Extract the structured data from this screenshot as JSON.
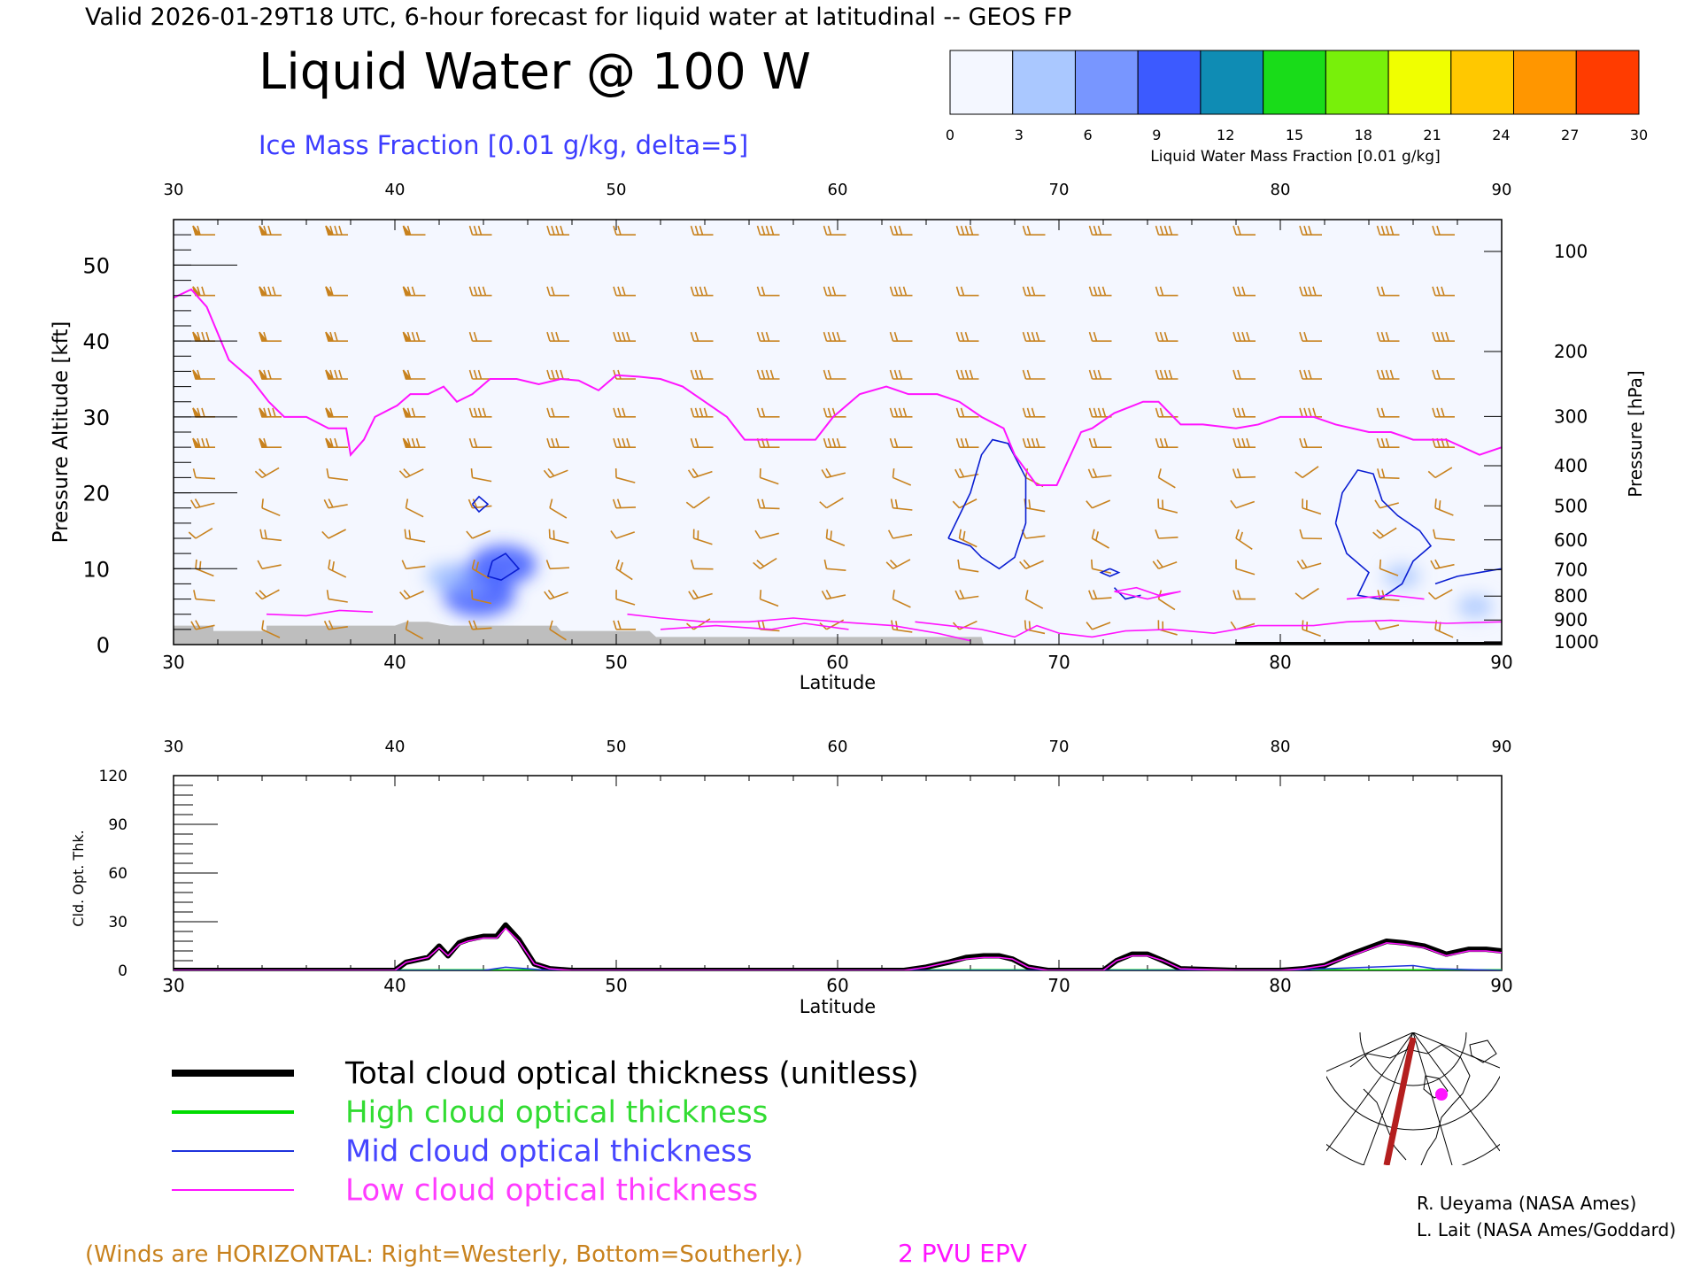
{
  "header": {
    "valid_line": "Valid 2026-01-29T18 UTC, 6-hour forecast for liquid water at latitudinal -- GEOS FP",
    "title": "Liquid Water @ 100 W",
    "subtitle": "Ice Mass Fraction [0.01 g/kg, delta=5]"
  },
  "colorbar": {
    "label": "Liquid Water Mass Fraction [0.01 g/kg]",
    "ticks": [
      "0",
      "3",
      "6",
      "9",
      "12",
      "15",
      "18",
      "21",
      "24",
      "27",
      "30"
    ],
    "colors": [
      "#f4f7ff",
      "#aac8ff",
      "#7896ff",
      "#3c5aff",
      "#0f8cb4",
      "#19dc19",
      "#78f00a",
      "#f0ff00",
      "#ffc800",
      "#ff9600",
      "#ff3c00"
    ]
  },
  "colors": {
    "wind": "#c8821e",
    "epv": "#ff14ff",
    "ice_contour": "#0a1ed2",
    "terrain": "#bebebe",
    "total": "#000000",
    "high": "#00dc00",
    "mid": "#1e32dc",
    "low": "#ff14ff",
    "credits": "#000000",
    "map_track": "#b41e1e",
    "map_marker": "#ff14ff"
  },
  "chart_data": [
    {
      "type": "heatmap",
      "name_hint": "latitude-pressure cross section",
      "x_axis": {
        "label": "Latitude",
        "range": [
          30,
          90
        ],
        "ticks": [
          "30",
          "40",
          "50",
          "60",
          "70",
          "80",
          "90"
        ]
      },
      "y_axis_left": {
        "label": "Pressure Altitude [kft]",
        "range": [
          0,
          56
        ],
        "ticks": [
          "0",
          "10",
          "20",
          "30",
          "40",
          "50"
        ]
      },
      "y_axis_right": {
        "label": "Pressure [hPa]",
        "ticks": [
          "100",
          "200",
          "300",
          "400",
          "500",
          "600",
          "700",
          "800",
          "900",
          "1000"
        ]
      },
      "liquid_water_blobs": [
        {
          "lat": 43.8,
          "kft": 6.5,
          "value": 9
        },
        {
          "lat": 43.0,
          "kft": 8.5,
          "value": 6
        },
        {
          "lat": 44.9,
          "kft": 10.5,
          "value": 8
        },
        {
          "lat": 42.2,
          "kft": 9.0,
          "value": 3
        },
        {
          "lat": 85.5,
          "kft": 9.0,
          "value": 3
        },
        {
          "lat": 88.8,
          "kft": 5.0,
          "value": 3
        }
      ],
      "epv_2pvu_line": [
        [
          30,
          45.7
        ],
        [
          30.8,
          46.8
        ],
        [
          31.5,
          44.5
        ],
        [
          32.5,
          37.5
        ],
        [
          33.5,
          35.0
        ],
        [
          34.3,
          32.0
        ],
        [
          35.0,
          30.0
        ],
        [
          36.0,
          30.0
        ],
        [
          37.0,
          28.5
        ],
        [
          37.8,
          28.5
        ],
        [
          38.0,
          25.0
        ],
        [
          38.6,
          27.0
        ],
        [
          39.1,
          30.0
        ],
        [
          40.1,
          31.5
        ],
        [
          40.7,
          33.0
        ],
        [
          41.5,
          33.0
        ],
        [
          42.2,
          34.0
        ],
        [
          42.8,
          32.0
        ],
        [
          43.5,
          33.0
        ],
        [
          44.3,
          35.0
        ],
        [
          45.5,
          35.0
        ],
        [
          46.5,
          34.3
        ],
        [
          47.5,
          35.0
        ],
        [
          48.3,
          34.8
        ],
        [
          49.2,
          33.5
        ],
        [
          50.0,
          35.5
        ],
        [
          51.0,
          35.3
        ],
        [
          52.0,
          35.0
        ],
        [
          53.0,
          34.0
        ],
        [
          54.0,
          32.0
        ],
        [
          55.0,
          30.0
        ],
        [
          55.8,
          27.0
        ],
        [
          56.5,
          27.0
        ],
        [
          57.5,
          27.0
        ],
        [
          59.0,
          27.0
        ],
        [
          59.8,
          30.0
        ],
        [
          61.0,
          33.0
        ],
        [
          62.2,
          34.0
        ],
        [
          63.2,
          33.0
        ],
        [
          64.5,
          33.0
        ],
        [
          65.5,
          32.0
        ],
        [
          66.5,
          30.0
        ],
        [
          67.5,
          28.5
        ],
        [
          68.0,
          25.0
        ],
        [
          69.0,
          21.0
        ],
        [
          69.9,
          21.0
        ],
        [
          71.0,
          28.0
        ],
        [
          71.5,
          28.5
        ],
        [
          72.5,
          30.5
        ],
        [
          73.8,
          32.0
        ],
        [
          74.5,
          32.0
        ],
        [
          75.5,
          29.0
        ],
        [
          76.5,
          29.0
        ],
        [
          78.0,
          28.5
        ],
        [
          79.0,
          29.0
        ],
        [
          80.0,
          30.0
        ],
        [
          81.5,
          30.0
        ],
        [
          82.5,
          29.0
        ],
        [
          84.0,
          28.0
        ],
        [
          85.0,
          28.0
        ],
        [
          86.0,
          27.0
        ],
        [
          87.5,
          27.0
        ],
        [
          89.0,
          25.0
        ],
        [
          90.0,
          26.0
        ]
      ],
      "epv_low_segments": [
        [
          [
            34.2,
            4.0
          ],
          [
            36.0,
            3.8
          ],
          [
            37.5,
            4.5
          ],
          [
            39.0,
            4.3
          ]
        ],
        [
          [
            50.5,
            4.0
          ],
          [
            52.0,
            3.5
          ],
          [
            54.0,
            3.0
          ],
          [
            56.0,
            3.0
          ],
          [
            58.0,
            3.5
          ],
          [
            60.0,
            3.0
          ],
          [
            62.5,
            2.5
          ],
          [
            64.5,
            1.5
          ],
          [
            66.0,
            0.5
          ]
        ],
        [
          [
            52.0,
            2.0
          ],
          [
            54.5,
            2.5
          ],
          [
            57.0,
            2.0
          ],
          [
            58.5,
            2.8
          ],
          [
            60.5,
            2.0
          ]
        ],
        [
          [
            63.5,
            3.0
          ],
          [
            65.0,
            2.5
          ],
          [
            66.5,
            2.0
          ],
          [
            68.0,
            1.0
          ],
          [
            69.0,
            2.5
          ],
          [
            70.0,
            1.5
          ],
          [
            71.5,
            1.0
          ],
          [
            73.0,
            1.8
          ],
          [
            75.0,
            2.0
          ],
          [
            77.0,
            1.5
          ],
          [
            79.0,
            2.5
          ],
          [
            81.5,
            2.5
          ],
          [
            83.0,
            3.0
          ],
          [
            85.0,
            3.2
          ],
          [
            87.5,
            2.8
          ],
          [
            90.0,
            3.0
          ]
        ],
        [
          [
            72.5,
            7.0
          ],
          [
            73.5,
            7.5
          ],
          [
            74.5,
            6.5
          ],
          [
            75.5,
            7.0
          ],
          [
            74.0,
            6.0
          ],
          [
            72.5,
            7.0
          ]
        ],
        [
          [
            83.0,
            6.0
          ],
          [
            85.0,
            6.5
          ],
          [
            86.5,
            6.0
          ]
        ]
      ],
      "ice_contours": [
        [
          [
            65.0,
            14.0
          ],
          [
            65.5,
            17.0
          ],
          [
            66.0,
            20.0
          ],
          [
            66.5,
            25.0
          ],
          [
            67.0,
            27.0
          ],
          [
            67.7,
            26.5
          ],
          [
            68.5,
            22.0
          ],
          [
            68.5,
            16.0
          ],
          [
            68.0,
            11.5
          ],
          [
            67.3,
            10.0
          ],
          [
            66.5,
            11.5
          ],
          [
            66.0,
            13.0
          ],
          [
            65.0,
            14.0
          ]
        ],
        [
          [
            82.5,
            16.0
          ],
          [
            82.8,
            20.0
          ],
          [
            83.5,
            23.0
          ],
          [
            84.2,
            22.5
          ],
          [
            84.6,
            19.0
          ],
          [
            85.3,
            17.0
          ],
          [
            86.3,
            15.0
          ],
          [
            86.8,
            13.0
          ],
          [
            86.0,
            11.0
          ],
          [
            85.5,
            8.0
          ],
          [
            84.5,
            6.0
          ],
          [
            83.5,
            6.5
          ],
          [
            84.0,
            9.5
          ],
          [
            83.0,
            12.0
          ],
          [
            82.5,
            16.0
          ]
        ],
        [
          [
            87.0,
            8.0
          ],
          [
            88.0,
            9.0
          ],
          [
            89.0,
            9.5
          ],
          [
            90.0,
            10.0
          ]
        ],
        [
          [
            44.4,
            11.0
          ],
          [
            45.0,
            12.0
          ],
          [
            45.6,
            10.0
          ],
          [
            44.8,
            8.5
          ],
          [
            44.2,
            9.0
          ],
          [
            44.4,
            11.0
          ]
        ],
        [
          [
            43.5,
            18.5
          ],
          [
            43.8,
            19.5
          ],
          [
            44.2,
            18.5
          ],
          [
            43.8,
            17.5
          ],
          [
            43.5,
            18.5
          ]
        ],
        [
          [
            72.3,
            10.0
          ],
          [
            72.7,
            9.5
          ],
          [
            72.3,
            9.0
          ],
          [
            71.9,
            9.5
          ],
          [
            72.3,
            10.0
          ]
        ],
        [
          [
            72.5,
            7.5
          ],
          [
            73.0,
            6.0
          ],
          [
            73.7,
            6.5
          ]
        ]
      ],
      "terrain": [
        [
          30,
          2.5
        ],
        [
          31.8,
          2.5
        ],
        [
          31.8,
          1.8
        ],
        [
          34.2,
          1.8
        ],
        [
          34.2,
          2.5
        ],
        [
          40.0,
          2.5
        ],
        [
          40.5,
          3.0
        ],
        [
          41.5,
          3.0
        ],
        [
          42.5,
          2.5
        ],
        [
          47.3,
          2.5
        ],
        [
          47.5,
          1.8
        ],
        [
          51.5,
          1.8
        ],
        [
          51.8,
          1.0
        ],
        [
          66.5,
          1.0
        ],
        [
          66.6,
          0
        ],
        [
          30,
          0
        ]
      ],
      "wind_barbs": {
        "lats": [
          31.0,
          34.0,
          37.0,
          40.5,
          43.5,
          47.0,
          50.0,
          53.5,
          56.5,
          59.5,
          62.5,
          65.5,
          68.5,
          71.5,
          74.5,
          78.0,
          81.0,
          84.5,
          87.0
        ],
        "levels_kft": [
          54,
          46,
          40,
          35,
          30,
          26,
          22,
          18,
          14,
          10,
          6,
          2
        ]
      }
    },
    {
      "type": "line",
      "name_hint": "cloud optical thickness",
      "x_axis": {
        "label": "Latitude",
        "range": [
          30,
          90
        ],
        "ticks": [
          "30",
          "40",
          "50",
          "60",
          "70",
          "80",
          "90"
        ]
      },
      "y_axis": {
        "label": "Cld. Opt. Thk.",
        "range": [
          0,
          120
        ],
        "ticks": [
          "0",
          "30",
          "60",
          "90",
          "120"
        ]
      },
      "series": [
        {
          "name": "Total cloud optical thickness (unitless)",
          "key": "total",
          "x": [
            30,
            38,
            40,
            40.5,
            41.5,
            42.0,
            42.4,
            42.9,
            43.3,
            44.0,
            44.6,
            45.0,
            45.6,
            46.3,
            47.0,
            48,
            50,
            55,
            60,
            63,
            64,
            65,
            65.8,
            66.6,
            67.3,
            67.9,
            68.6,
            69.5,
            72,
            72.6,
            73.3,
            74.0,
            74.7,
            75.5,
            78,
            80,
            81,
            82,
            83,
            84,
            84.8,
            85.6,
            86.5,
            87.5,
            88.5,
            89.3,
            90
          ],
          "y": [
            0,
            0,
            0,
            5,
            8,
            15,
            9,
            17,
            19,
            21,
            21,
            28,
            19,
            4,
            1,
            0,
            0,
            0,
            0,
            0,
            2,
            5,
            8,
            9,
            9,
            7,
            2,
            0,
            0,
            6,
            10,
            10,
            6,
            1,
            0,
            0,
            1,
            3,
            9,
            14,
            18,
            17,
            15,
            10,
            13,
            13,
            12
          ]
        },
        {
          "name": "High cloud optical thickness",
          "key": "high",
          "x": [
            30,
            90
          ],
          "y": [
            0,
            0
          ]
        },
        {
          "name": "Mid cloud optical thickness",
          "key": "mid",
          "x": [
            30,
            44,
            45,
            46,
            47,
            60,
            80,
            84,
            86,
            87,
            90
          ],
          "y": [
            0,
            0,
            2,
            1,
            0,
            0,
            0,
            2,
            3,
            1,
            0
          ]
        },
        {
          "name": "Low cloud optical thickness",
          "key": "low",
          "x": [
            30,
            38,
            40,
            40.5,
            41.5,
            42.0,
            42.4,
            42.9,
            43.3,
            44.0,
            44.6,
            45.0,
            45.6,
            46.3,
            47.0,
            48,
            50,
            55,
            60,
            63,
            64,
            65,
            65.8,
            66.6,
            67.3,
            67.9,
            68.6,
            69.5,
            72,
            72.6,
            73.3,
            74.0,
            74.7,
            75.5,
            78,
            80,
            81,
            82,
            83,
            84,
            84.8,
            85.6,
            86.5,
            87.5,
            88.5,
            89.3,
            90
          ],
          "y": [
            0,
            0,
            0,
            5,
            8,
            14,
            9,
            16,
            18,
            20,
            20,
            26,
            18,
            4,
            1,
            0,
            0,
            0,
            0,
            0,
            2,
            5,
            7,
            8,
            8,
            7,
            2,
            0,
            0,
            6,
            9,
            9,
            6,
            1,
            0,
            0,
            1,
            3,
            8,
            13,
            17,
            16,
            14,
            9,
            12,
            12,
            11
          ]
        }
      ]
    }
  ],
  "legend": {
    "items": [
      {
        "label": "Total cloud optical thickness (unitless)",
        "key": "total"
      },
      {
        "label": "High cloud optical thickness",
        "key": "high"
      },
      {
        "label": "Mid cloud optical thickness",
        "key": "mid"
      },
      {
        "label": "Low cloud optical thickness",
        "key": "low"
      }
    ]
  },
  "footer": {
    "winds_note": "(Winds are HORIZONTAL: Right=Westerly, Bottom=Southerly.)",
    "epv_label": "2 PVU EPV",
    "credit_1": "R. Ueyama (NASA Ames)",
    "credit_2": "L. Lait (NASA Ames/Goddard)"
  },
  "inset_map": {
    "track_lon": "100 W",
    "marker": "current-location"
  }
}
